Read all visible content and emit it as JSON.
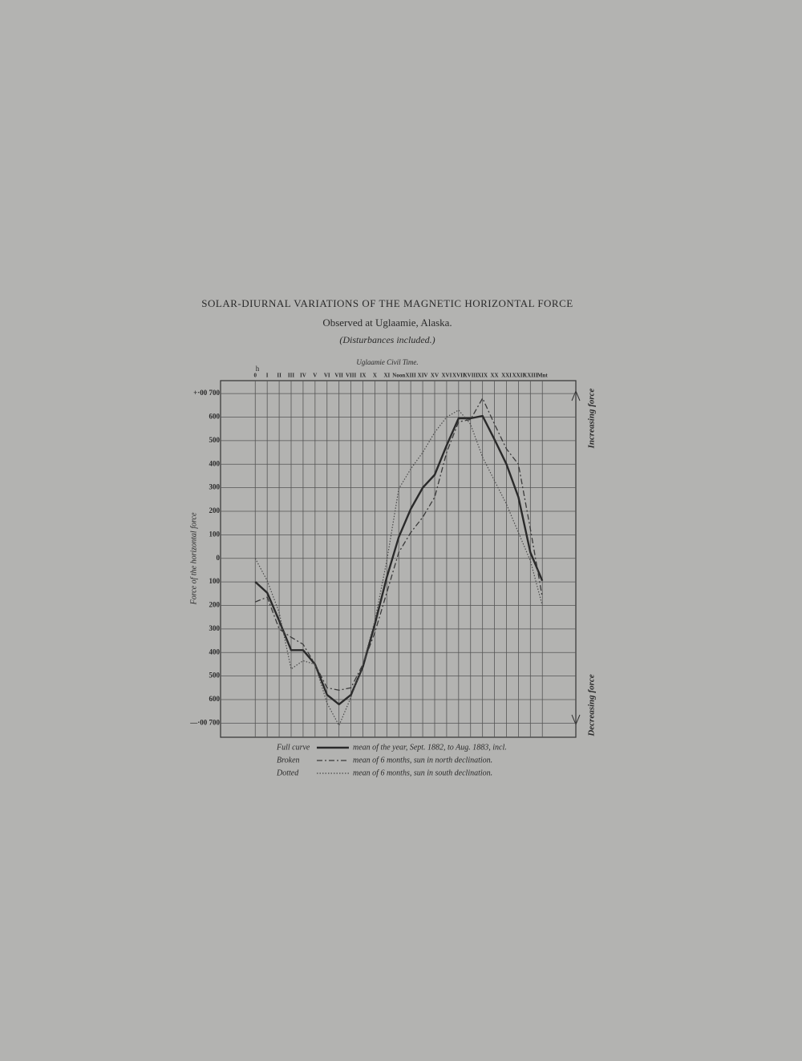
{
  "chart_data": {
    "type": "line",
    "title": "SOLAR-DIURNAL VARIATIONS OF THE MAGNETIC HORIZONTAL FORCE",
    "subtitle": "Observed at Uglaamie, Alaska.",
    "note": "(Disturbances included.)",
    "x_label": "Uglaamie Civil Time.",
    "x_unit": "h",
    "y_label": "Force of the horizontal force",
    "top_annotation": "Increasing force",
    "bottom_annotation": "Decreasing force",
    "x": [
      0,
      1,
      2,
      3,
      4,
      5,
      6,
      7,
      8,
      9,
      10,
      11,
      12,
      13,
      14,
      15,
      16,
      17,
      18,
      19,
      20,
      21,
      22,
      23,
      24
    ],
    "xlim": [
      -2.9,
      26.8
    ],
    "ylim": [
      -760,
      755
    ],
    "grid": true,
    "xticks": [
      0,
      {
        "value": 1,
        "label": "I"
      },
      {
        "value": 2,
        "label": "II"
      },
      {
        "value": 3,
        "label": "III"
      },
      {
        "value": 4,
        "label": "IV"
      },
      {
        "value": 5,
        "label": "V"
      },
      {
        "value": 6,
        "label": "VI"
      },
      {
        "value": 7,
        "label": "VII"
      },
      {
        "value": 8,
        "label": "VIII"
      },
      {
        "value": 9,
        "label": "IX"
      },
      {
        "value": 10,
        "label": "X"
      },
      {
        "value": 11,
        "label": "XI"
      },
      {
        "value": 12,
        "label": "Noon"
      },
      {
        "value": 13,
        "label": "XIII"
      },
      {
        "value": 14,
        "label": "XIV"
      },
      {
        "value": 15,
        "label": "XV"
      },
      {
        "value": 16,
        "label": "XVI"
      },
      {
        "value": 17,
        "label": "XVII"
      },
      {
        "value": 18,
        "label": "XVIII"
      },
      {
        "value": 19,
        "label": "XIX"
      },
      {
        "value": 20,
        "label": "XX"
      },
      {
        "value": 21,
        "label": "XXI"
      },
      {
        "value": 22,
        "label": "XXII"
      },
      {
        "value": 23,
        "label": "XXIII"
      },
      {
        "value": 24,
        "label": "Mnt"
      }
    ],
    "yticks": [
      {
        "value": 700,
        "label": "+·00 700"
      },
      600,
      500,
      400,
      300,
      200,
      100,
      0,
      {
        "value": -100,
        "label": "100"
      },
      {
        "value": -200,
        "label": "200"
      },
      {
        "value": -300,
        "label": "300"
      },
      {
        "value": -400,
        "label": "400"
      },
      {
        "value": -500,
        "label": "500"
      },
      {
        "value": -600,
        "label": "600"
      },
      {
        "value": -700,
        "label": "—·00 700"
      }
    ],
    "series": [
      {
        "name": "Full curve",
        "description": "mean of the year, Sept. 1882, to Aug. 1883, incl.",
        "color": "#2a2a2a",
        "style": "solid",
        "values": [
          -100,
          -146,
          -265,
          -390,
          -390,
          -450,
          -580,
          -620,
          -580,
          -460,
          -280,
          -80,
          90,
          210,
          300,
          355,
          480,
          595,
          595,
          605,
          505,
          400,
          260,
          25,
          -95
        ]
      },
      {
        "name": "Broken",
        "description": "mean of 6 months, sun in north declination.",
        "color": "#3a3a3a",
        "style": "dashed",
        "values": [
          -185,
          -165,
          -300,
          -335,
          -365,
          -450,
          -550,
          -560,
          -550,
          -450,
          -315,
          -145,
          25,
          110,
          175,
          260,
          450,
          580,
          590,
          680,
          570,
          465,
          400,
          125,
          -165
        ]
      },
      {
        "name": "Dotted",
        "description": "mean of 6 months, sun in south declination.",
        "color": "#4a4a4a",
        "style": "dotted",
        "values": [
          0,
          -95,
          -230,
          -470,
          -435,
          -450,
          -615,
          -710,
          -590,
          -450,
          -265,
          -10,
          295,
          380,
          450,
          535,
          600,
          630,
          570,
          430,
          330,
          230,
          110,
          -10,
          -200
        ]
      }
    ]
  }
}
